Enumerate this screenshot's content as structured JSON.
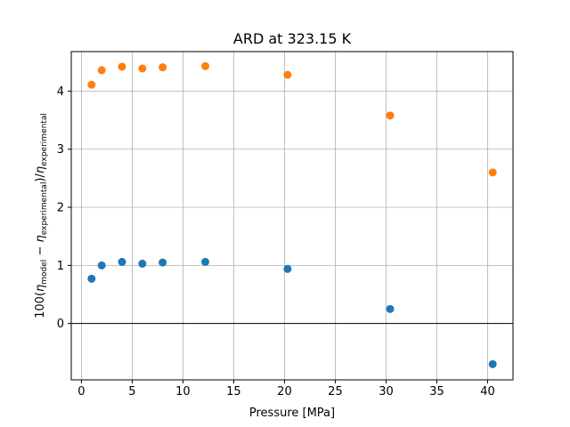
{
  "chart_data": {
    "type": "scatter",
    "title": "ARD at 323.15 K",
    "xlabel": "Pressure [MPa]",
    "ylabel": {
      "prefix": "100(",
      "eta1": "η",
      "sub1": "model",
      "mid": " − ",
      "eta2": "η",
      "sub2": "experimental",
      "end": ")/",
      "eta3": "η",
      "sub3": "experimental"
    },
    "xlim": [
      -1.0,
      42.5
    ],
    "ylim": [
      -0.97,
      4.68
    ],
    "xticks": [
      0,
      5,
      10,
      15,
      20,
      25,
      30,
      35,
      40
    ],
    "yticks": [
      0,
      1,
      2,
      3,
      4
    ],
    "grid": true,
    "reference_line_y": 0,
    "series": [
      {
        "color": "#1f77b4",
        "x": [
          1.0,
          2.0,
          4.0,
          6.0,
          8.0,
          12.2,
          20.3,
          30.4,
          40.5
        ],
        "y": [
          0.77,
          1.0,
          1.06,
          1.03,
          1.05,
          1.06,
          0.94,
          0.25,
          -0.7
        ]
      },
      {
        "color": "#ff7f0e",
        "x": [
          1.0,
          2.0,
          4.0,
          6.0,
          8.0,
          12.2,
          20.3,
          30.4,
          40.5
        ],
        "y": [
          4.11,
          4.36,
          4.42,
          4.39,
          4.41,
          4.43,
          4.28,
          3.58,
          2.6
        ]
      }
    ]
  }
}
